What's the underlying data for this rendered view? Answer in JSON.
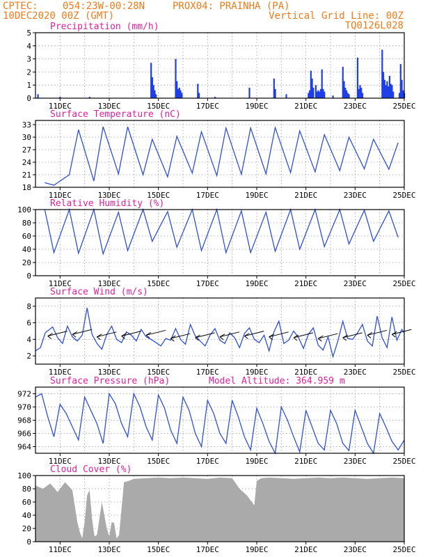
{
  "header": {
    "source": "CPTEC:",
    "coords": "054:23W-00:28N",
    "location": "PROX04: PRAINHA (PA)",
    "date": "10DEC2020 00Z (GMT)",
    "grid_note": "Vertical Grid Line: 00Z",
    "model_code": "TQ0126L028"
  },
  "colors": {
    "header": "#f07a18",
    "title": "#e0209a",
    "line": "#2e4fd8",
    "bar": "#1f3fe6",
    "cloud": "#aaaaaa"
  },
  "x_ticks": [
    "11DEC",
    "13DEC",
    "15DEC",
    "17DEC",
    "19DEC",
    "21DEC",
    "23DEC",
    "25DEC"
  ],
  "chart_data": [
    {
      "type": "bar",
      "title": "Precipitation (mm/h)",
      "ylim": [
        0,
        5
      ],
      "yticks": [
        "0",
        "1",
        "2",
        "3",
        "4",
        "5"
      ],
      "xlim": [
        10,
        25
      ],
      "x": [
        10.1,
        11.0,
        12.2,
        14.7,
        14.75,
        14.8,
        14.85,
        14.9,
        15.7,
        15.75,
        15.8,
        15.85,
        15.9,
        15.95,
        16.6,
        16.65,
        17.3,
        18.7,
        19.7,
        19.75,
        20.2,
        21.1,
        21.15,
        21.2,
        21.25,
        21.3,
        21.4,
        21.45,
        21.5,
        21.55,
        21.6,
        21.65,
        21.7,
        21.75,
        22.1,
        22.5,
        22.55,
        22.6,
        22.65,
        22.7,
        22.75,
        23.1,
        23.15,
        23.2,
        23.25,
        23.3,
        24.1,
        24.15,
        24.2,
        24.25,
        24.3,
        24.35,
        24.4,
        24.45,
        24.5,
        24.55,
        24.8,
        24.85,
        24.9,
        24.95,
        25.0
      ],
      "values": [
        0.3,
        0.1,
        0.1,
        2.7,
        1.6,
        1.0,
        0.6,
        0.3,
        3.0,
        1.3,
        0.7,
        0.8,
        0.6,
        0.4,
        1.1,
        0.4,
        0.1,
        0.8,
        1.5,
        0.7,
        0.3,
        0.4,
        0.6,
        2.1,
        1.5,
        0.8,
        1.0,
        0.5,
        0.6,
        0.5,
        0.7,
        2.2,
        0.7,
        0.5,
        0.2,
        2.4,
        1.3,
        0.8,
        0.6,
        0.4,
        0.3,
        3.1,
        0.7,
        1.0,
        0.8,
        0.4,
        3.7,
        2.0,
        1.4,
        1.0,
        1.3,
        0.9,
        1.7,
        1.1,
        1.0,
        0.5,
        0.4,
        2.6,
        1.4,
        0.6,
        0.4
      ]
    },
    {
      "type": "line",
      "title": "Surface Temperature (nC)",
      "ylim": [
        18,
        34
      ],
      "yticks": [
        "18",
        "21",
        "24",
        "27",
        "30",
        "33"
      ],
      "xlim": [
        10,
        25
      ],
      "min_hour": 9,
      "max_hour": 18,
      "mins": [
        19.1,
        21.0,
        19.5,
        21.2,
        21.0,
        20.5,
        21.4,
        20.8,
        21.1,
        21.2,
        21.5,
        21.7,
        22.0,
        22.4,
        22.3
      ],
      "maxs": [
        18.5,
        31.8,
        32.5,
        32.5,
        29.5,
        30.2,
        31.3,
        32.2,
        32.2,
        32.3,
        31.5,
        30.6,
        30.0,
        29.5,
        28.7
      ]
    },
    {
      "type": "line",
      "title": "Relative Humidity (%)",
      "ylim": [
        0,
        100
      ],
      "yticks": [
        "0",
        "20",
        "40",
        "60",
        "80",
        "100"
      ],
      "xlim": [
        10,
        25
      ],
      "max_hour": 9,
      "min_hour": 18,
      "maxs": [
        100,
        100,
        100,
        96,
        100,
        97,
        100,
        100,
        98,
        96,
        100,
        100,
        100,
        99,
        98
      ],
      "mins": [
        35,
        34,
        33,
        38,
        52,
        43,
        38,
        35,
        35,
        37,
        40,
        44,
        48,
        52,
        58
      ]
    },
    {
      "type": "line",
      "title": "Surface Wind (m/s)",
      "ylim": [
        1,
        9
      ],
      "yticks": [
        "2",
        "4",
        "6",
        "8"
      ],
      "xlim": [
        10,
        25
      ],
      "x": [
        10.0,
        10.2,
        10.4,
        10.7,
        10.9,
        11.1,
        11.3,
        11.5,
        11.7,
        11.9,
        12.1,
        12.3,
        12.5,
        12.7,
        12.9,
        13.1,
        13.3,
        13.5,
        13.7,
        13.9,
        14.1,
        14.3,
        14.5,
        14.7,
        14.9,
        15.1,
        15.3,
        15.5,
        15.7,
        15.9,
        16.1,
        16.3,
        16.5,
        16.7,
        16.9,
        17.1,
        17.3,
        17.5,
        17.7,
        17.9,
        18.1,
        18.3,
        18.5,
        18.7,
        18.9,
        19.1,
        19.3,
        19.5,
        19.7,
        19.9,
        20.1,
        20.3,
        20.5,
        20.7,
        20.9,
        21.1,
        21.3,
        21.5,
        21.7,
        21.9,
        22.1,
        22.3,
        22.5,
        22.7,
        22.9,
        23.1,
        23.3,
        23.5,
        23.7,
        23.9,
        24.1,
        24.3,
        24.5,
        24.7,
        24.9,
        25.0
      ],
      "values": [
        2.6,
        3.0,
        4.8,
        5.5,
        4.2,
        3.5,
        5.6,
        4.3,
        3.8,
        4.5,
        7.8,
        4.6,
        3.5,
        2.8,
        4.6,
        5.6,
        4.0,
        3.6,
        4.9,
        4.5,
        3.8,
        5.2,
        4.3,
        4.0,
        3.6,
        3.2,
        4.1,
        3.9,
        5.3,
        4.0,
        3.4,
        5.8,
        4.4,
        3.8,
        3.2,
        4.5,
        5.3,
        3.9,
        3.5,
        4.8,
        4.2,
        3.0,
        4.7,
        5.4,
        4.0,
        3.6,
        4.5,
        2.6,
        4.9,
        6.2,
        3.5,
        3.9,
        5.0,
        4.2,
        2.9,
        4.6,
        5.4,
        3.3,
        2.7,
        4.3,
        1.9,
        3.8,
        6.2,
        4.1,
        4.0,
        4.8,
        5.8,
        3.8,
        3.2,
        6.8,
        4.2,
        3.0,
        6.7,
        3.9,
        5.2,
        4.8
      ],
      "barbs_x": [
        10.5,
        11.5,
        12.5,
        13.5,
        14.5,
        15.5,
        16.5,
        17.5,
        18.5,
        19.5,
        20.5,
        21.5,
        22.5,
        23.5,
        24.5
      ],
      "barbs_y": [
        4.4,
        4.6,
        4.3,
        4.4,
        4.5,
        4.1,
        4.2,
        4.3,
        4.4,
        4.3,
        4.2,
        4.1,
        4.2,
        4.5,
        4.6
      ]
    },
    {
      "type": "line",
      "title": "Surface Pressure (hPa)",
      "annotation": "Model Altitude: 364.959 m",
      "ylim": [
        963,
        973
      ],
      "yticks": [
        "964",
        "966",
        "968",
        "970",
        "972"
      ],
      "xlim": [
        10,
        25
      ],
      "x": [
        10.0,
        10.25,
        10.5,
        10.75,
        11.0,
        11.25,
        11.5,
        11.75,
        12.0,
        12.25,
        12.5,
        12.75,
        13.0,
        13.25,
        13.5,
        13.75,
        14.0,
        14.25,
        14.5,
        14.75,
        15.0,
        15.25,
        15.5,
        15.75,
        16.0,
        16.25,
        16.5,
        16.75,
        17.0,
        17.25,
        17.5,
        17.75,
        18.0,
        18.25,
        18.5,
        18.75,
        19.0,
        19.25,
        19.5,
        19.75,
        20.0,
        20.25,
        20.5,
        20.75,
        21.0,
        21.25,
        21.5,
        21.75,
        22.0,
        22.25,
        22.5,
        22.75,
        23.0,
        23.25,
        23.5,
        23.75,
        24.0,
        24.25,
        24.5,
        24.75,
        25.0
      ],
      "values": [
        971.5,
        972.0,
        968.5,
        965.5,
        970.4,
        969.0,
        967.0,
        965.0,
        971.5,
        969.5,
        967.5,
        964.5,
        972.0,
        970.5,
        967.5,
        965.5,
        972.0,
        970.0,
        967.0,
        965.0,
        971.8,
        969.8,
        966.5,
        964.5,
        971.5,
        969.5,
        966.0,
        964.0,
        971.0,
        969.0,
        966.0,
        964.5,
        971.0,
        968.5,
        965.5,
        963.5,
        969.8,
        967.5,
        964.8,
        963.0,
        970.0,
        968.0,
        965.5,
        963.2,
        969.5,
        967.0,
        964.5,
        963.5,
        969.5,
        967.5,
        964.5,
        963.4,
        969.5,
        967.0,
        964.5,
        963.0,
        969.0,
        967.0,
        964.8,
        963.5,
        965.0
      ]
    },
    {
      "type": "area",
      "title": "Cloud Cover (%)",
      "ylim": [
        0,
        100
      ],
      "yticks": [
        "0",
        "20",
        "40",
        "60",
        "80",
        "100"
      ],
      "xlim": [
        10,
        25
      ],
      "x": [
        10.0,
        10.3,
        10.6,
        10.9,
        11.2,
        11.5,
        11.7,
        11.8,
        11.9,
        12.0,
        12.1,
        12.2,
        12.3,
        12.4,
        12.5,
        12.7,
        12.9,
        13.0,
        13.1,
        13.2,
        13.3,
        13.4,
        13.6,
        13.8,
        14.0,
        14.5,
        15.0,
        15.5,
        16.0,
        16.5,
        17.0,
        17.5,
        18.0,
        18.3,
        18.6,
        18.9,
        19.0,
        19.2,
        19.5,
        20.0,
        20.5,
        21.0,
        21.5,
        22.0,
        22.5,
        23.0,
        23.5,
        24.0,
        24.5,
        25.0
      ],
      "values": [
        85,
        80,
        88,
        75,
        90,
        78,
        30,
        15,
        5,
        30,
        70,
        78,
        35,
        8,
        10,
        60,
        20,
        8,
        30,
        28,
        5,
        10,
        90,
        92,
        95,
        96,
        97,
        96,
        97,
        96,
        95,
        97,
        96,
        80,
        70,
        55,
        92,
        96,
        97,
        96,
        95,
        96,
        97,
        96,
        97,
        96,
        95,
        96,
        97,
        96
      ]
    }
  ]
}
